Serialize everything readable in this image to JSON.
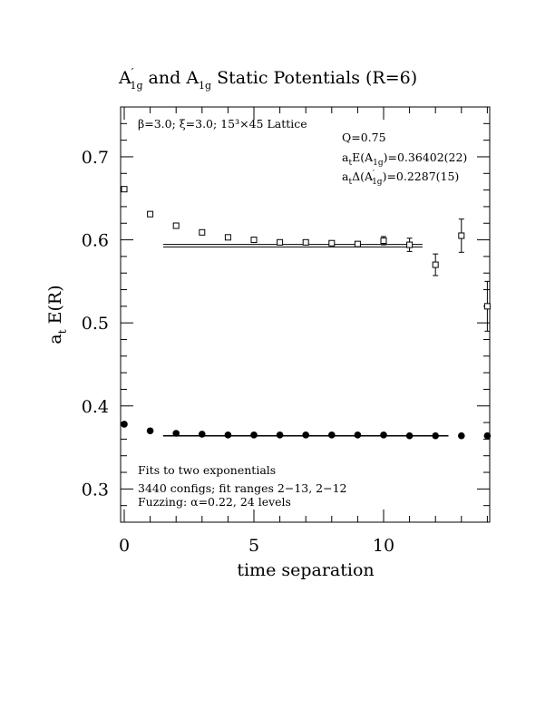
{
  "chart_data": {
    "type": "scatter",
    "title": {
      "a": "A",
      "sup": "′",
      "sub1": "1g",
      "mid": " and A",
      "sub2": "1g",
      "tail": " Static Potentials (R=6)"
    },
    "xlabel": "time separation",
    "ylabel": {
      "main": "a",
      "sub": "t",
      "tail": " E(R)"
    },
    "xlim": [
      0,
      14
    ],
    "ylim": [
      0.26,
      0.76
    ],
    "x_ticks": [
      0,
      5,
      10
    ],
    "y_ticks": [
      0.3,
      0.4,
      0.5,
      0.6,
      0.7
    ],
    "x_tick_labels": [
      "0",
      "5",
      "10"
    ],
    "y_tick_labels": [
      "0.3",
      "0.4",
      "0.5",
      "0.6",
      "0.7"
    ],
    "annotations": {
      "lattice": "β=3.0; ξ=3.0; 15³×45 Lattice",
      "q": "Q=0.75",
      "energy": {
        "pre": "a",
        "sub": "t",
        "mid": "E(A",
        "sub2": "1g",
        "post": ")=0.36402(22)"
      },
      "gap": {
        "pre": "a",
        "sub": "t",
        "mid": "Δ(A",
        "sup": "′",
        "sub2": "1g",
        "post": ")=0.2287(15)"
      },
      "fits": "Fits to two exponentials",
      "configs": "3440 configs; fit ranges 2−13, 2−12",
      "fuzzing": "Fuzzing: α=0.22, 24 levels"
    },
    "series": [
      {
        "name": "A′1g",
        "marker": "open-square",
        "x": [
          0,
          1,
          2,
          3,
          4,
          5,
          6,
          7,
          8,
          9,
          10,
          11,
          12,
          13,
          14
        ],
        "y": [
          0.661,
          0.631,
          0.617,
          0.609,
          0.603,
          0.6,
          0.597,
          0.597,
          0.596,
          0.595,
          0.599,
          0.594,
          0.57,
          0.605,
          0.52
        ],
        "err": [
          0.001,
          0.001,
          0.001,
          0.001,
          0.002,
          0.002,
          0.002,
          0.003,
          0.003,
          0.003,
          0.005,
          0.008,
          0.013,
          0.02,
          0.03
        ]
      },
      {
        "name": "A1g",
        "marker": "filled-circle",
        "x": [
          0,
          1,
          2,
          3,
          4,
          5,
          6,
          7,
          8,
          9,
          10,
          11,
          12,
          13,
          14
        ],
        "y": [
          0.378,
          0.37,
          0.367,
          0.366,
          0.365,
          0.365,
          0.365,
          0.365,
          0.365,
          0.365,
          0.365,
          0.364,
          0.364,
          0.364,
          0.364
        ],
        "err": [
          0,
          0,
          0,
          0,
          0,
          0,
          0,
          0,
          0,
          0,
          0,
          0,
          0,
          0,
          0
        ]
      }
    ],
    "fits": [
      {
        "series": "A′1g",
        "x_range": [
          1.5,
          11.5
        ],
        "value": 0.593,
        "band": 0.0015
      },
      {
        "series": "A1g",
        "x_range": [
          1.5,
          12.5
        ],
        "value": 0.36402,
        "band": 0.0003
      }
    ]
  }
}
